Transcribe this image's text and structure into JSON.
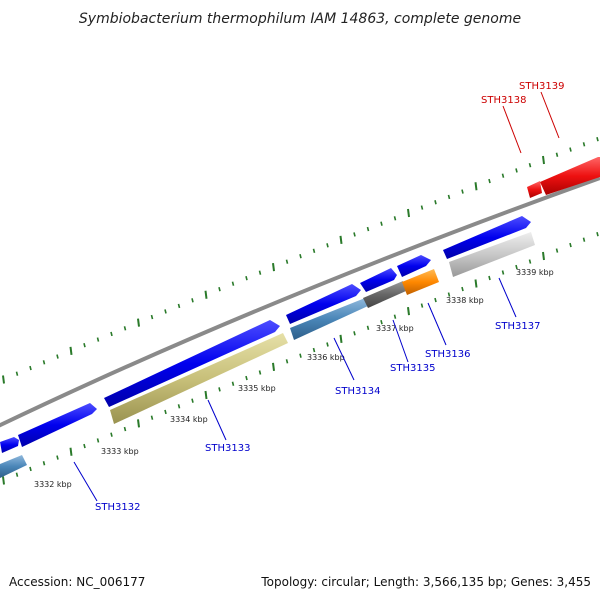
{
  "title": "Symbiobacterium thermophilum IAM 14863, complete genome",
  "footer": {
    "accession": "Accession: NC_006177",
    "topology": "Topology: circular; Length: 3,566,135 bp; Genes: 3,455"
  },
  "ruler_labels": [
    "3332 kbp",
    "3333 kbp",
    "3334 kbp",
    "3335 kbp",
    "3336 kbp",
    "3337 kbp",
    "3338 kbp",
    "3339 kbp"
  ],
  "genes": [
    {
      "id": "STH3132",
      "color": "#0000cc"
    },
    {
      "id": "STH3133",
      "color": "#0000cc"
    },
    {
      "id": "STH3134",
      "color": "#0000cc"
    },
    {
      "id": "STH3135",
      "color": "#0000cc"
    },
    {
      "id": "STH3136",
      "color": "#0000cc"
    },
    {
      "id": "STH3137",
      "color": "#0000cc"
    },
    {
      "id": "STH3138",
      "color": "#cc0000"
    },
    {
      "id": "STH3139",
      "color": "#cc0000"
    }
  ],
  "colors": {
    "forward_gene": "#0000ee",
    "backbone": "#8a8a8a",
    "tick": "#2a7a2a",
    "rrna": "#ee1111",
    "STH3132": "#4a86b8",
    "STH3133": "#c8c07a",
    "STH3134": "#4a86b8",
    "STH3135": "#666666",
    "STH3136": "#ff8800",
    "STH3137": "#c8c8c8"
  }
}
